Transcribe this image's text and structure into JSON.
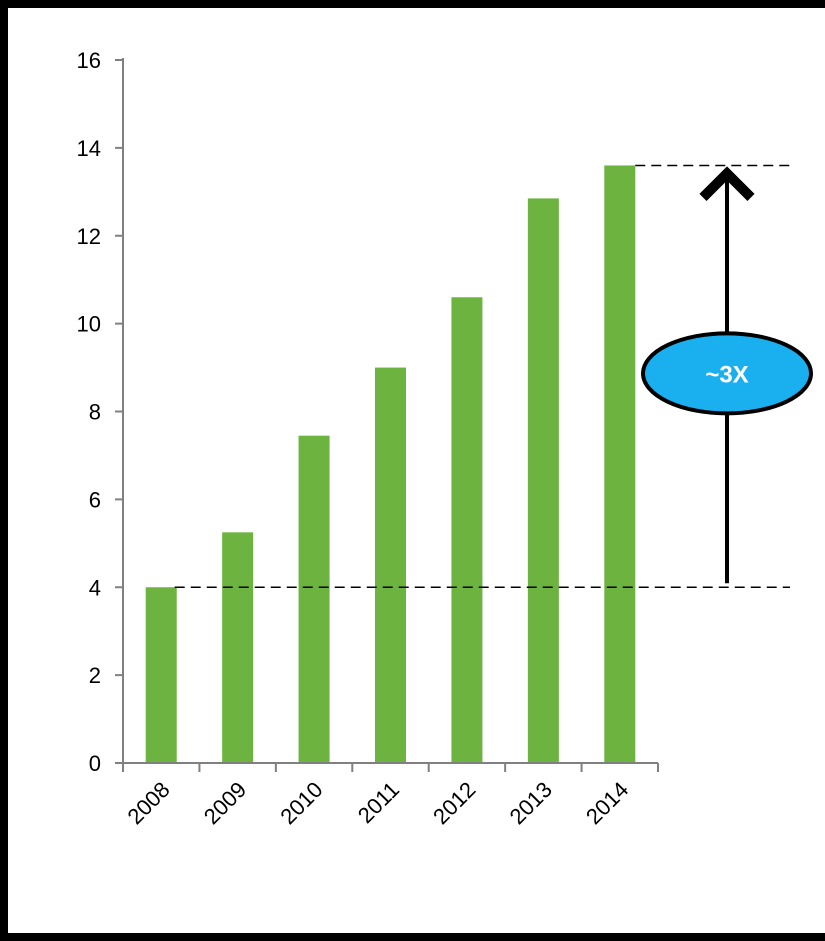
{
  "chart_data": {
    "type": "bar",
    "categories": [
      "2008",
      "2009",
      "2010",
      "2011",
      "2012",
      "2013",
      "2014"
    ],
    "values": [
      4.0,
      5.25,
      7.45,
      9.0,
      10.6,
      12.85,
      13.6
    ],
    "ylim": [
      0,
      16
    ],
    "yticks": [
      "0",
      "2",
      "4",
      "6",
      "8",
      "10",
      "12",
      "14",
      "16"
    ],
    "ytick_values": [
      0,
      2,
      4,
      6,
      8,
      10,
      12,
      14,
      16
    ],
    "bar_color": "#6db33f",
    "grid": false,
    "reference_lines": [
      4.0,
      13.6
    ],
    "annotation": {
      "text": "~3X",
      "fill": "#1ab0f0",
      "from_value": 4.0,
      "to_value": 13.6
    }
  }
}
